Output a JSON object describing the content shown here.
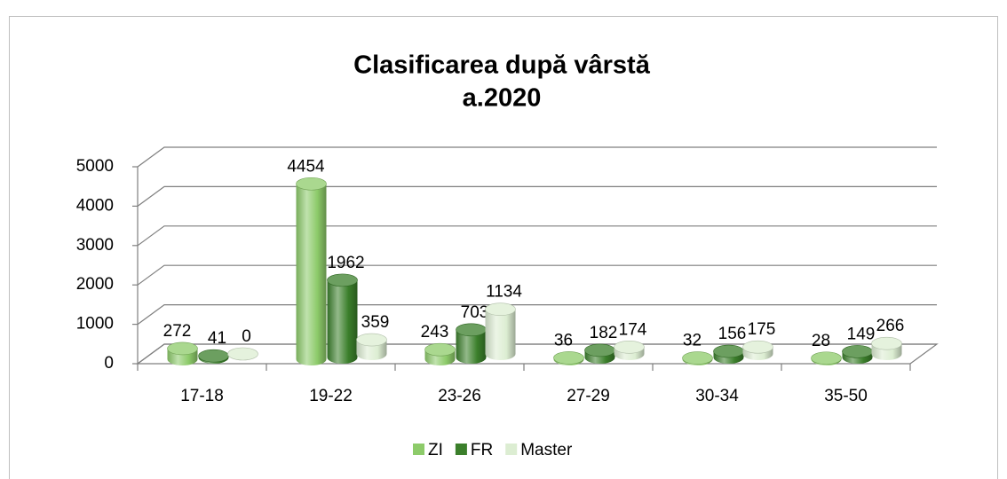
{
  "chart_data": {
    "type": "bar3d",
    "title": "Clasificarea după vârstă",
    "subtitle": "a.2020",
    "categories": [
      "17-18",
      "19-22",
      "23-26",
      "27-29",
      "30-34",
      "35-50"
    ],
    "series": [
      {
        "name": "ZI",
        "color": "#8dcb6a",
        "values": [
          272,
          4454,
          243,
          36,
          32,
          28
        ]
      },
      {
        "name": "FR",
        "color": "#3b7f2b",
        "values": [
          41,
          1962,
          703,
          182,
          156,
          149
        ]
      },
      {
        "name": "Master",
        "color": "#dcedd2",
        "values": [
          0,
          359,
          1134,
          174,
          175,
          266
        ]
      }
    ],
    "ylim": [
      0,
      5000
    ],
    "yticks": [
      0,
      1000,
      2000,
      3000,
      4000,
      5000
    ],
    "grid": true,
    "legend": "bottom"
  }
}
